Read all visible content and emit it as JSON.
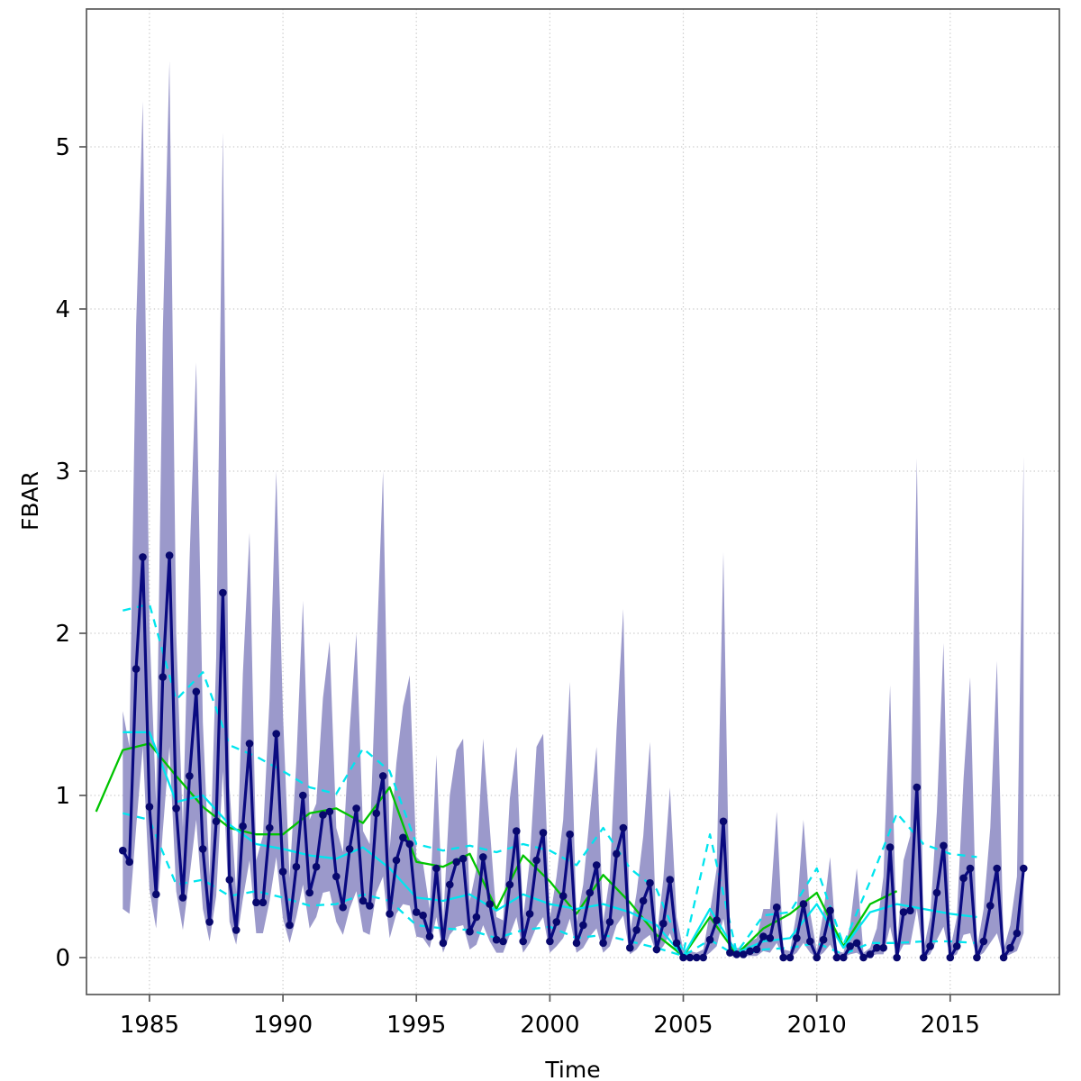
{
  "chart_data": {
    "type": "line",
    "title": "",
    "xlabel": "Time",
    "ylabel": "FBAR",
    "xlim": [
      1982.64,
      2019.09
    ],
    "ylim": [
      -0.228,
      5.85
    ],
    "x_ticks": [
      1985,
      1990,
      1995,
      2000,
      2005,
      2010,
      2015
    ],
    "y_ticks": [
      0,
      1,
      2,
      3,
      4,
      5
    ],
    "grid": "dotted",
    "legend_position": "none",
    "colors": {
      "band": "#9b99cb",
      "estimate": "#0a0a80",
      "estimate_point": "#08086e",
      "green_line": "#00c400",
      "cyan_line": "#00e5ee",
      "grid": "#c9c9c9",
      "axis": "#5a5a5a",
      "label": "#000000",
      "background": "#ffffff"
    },
    "band": {
      "name": "confidence-band",
      "start": 1984.0,
      "step": 0.25,
      "upper": [
        1.52,
        1.3,
        3.9,
        5.28,
        2.05,
        0.95,
        3.85,
        5.53,
        2.0,
        0.8,
        2.45,
        3.67,
        1.45,
        0.5,
        1.85,
        5.09,
        1.05,
        0.4,
        1.75,
        2.62,
        0.6,
        0.75,
        1.6,
        3.0,
        1.5,
        0.49,
        1.2,
        2.2,
        0.85,
        0.95,
        1.6,
        1.95,
        0.8,
        0.65,
        1.4,
        2.0,
        0.78,
        0.7,
        1.85,
        3.0,
        0.67,
        1.2,
        1.55,
        1.74,
        0.62,
        0.58,
        0.3,
        1.25,
        0.22,
        1.0,
        1.28,
        1.35,
        0.35,
        0.55,
        1.35,
        0.8,
        0.25,
        0.23,
        0.98,
        1.3,
        0.24,
        0.6,
        1.3,
        1.38,
        0.24,
        0.5,
        0.85,
        1.7,
        0.22,
        0.45,
        0.88,
        1.3,
        0.22,
        0.5,
        1.4,
        2.15,
        0.15,
        0.4,
        0.75,
        1.33,
        0.12,
        0.48,
        1.05,
        0.25,
        0.05,
        0.04,
        0.03,
        0.05,
        0.28,
        0.55,
        2.5,
        0.1,
        0.06,
        0.06,
        0.1,
        0.12,
        0.3,
        0.3,
        0.9,
        0.05,
        0.04,
        0.28,
        0.85,
        0.28,
        0.04,
        0.28,
        0.62,
        0.04,
        0.03,
        0.2,
        0.55,
        0.03,
        0.06,
        0.18,
        0.5,
        1.68,
        0.05,
        0.6,
        0.75,
        3.08,
        0.05,
        0.25,
        0.9,
        1.94,
        0.05,
        0.25,
        1.1,
        1.73,
        0.05,
        0.3,
        0.8,
        1.83,
        0.05,
        0.2,
        0.5,
        3.09
      ],
      "lower": [
        0.3,
        0.27,
        0.8,
        1.3,
        0.42,
        0.18,
        0.78,
        1.3,
        0.41,
        0.17,
        0.5,
        0.85,
        0.3,
        0.1,
        0.38,
        1.15,
        0.22,
        0.08,
        0.36,
        0.6,
        0.15,
        0.15,
        0.35,
        0.62,
        0.24,
        0.09,
        0.25,
        0.45,
        0.18,
        0.25,
        0.4,
        0.41,
        0.22,
        0.14,
        0.3,
        0.41,
        0.16,
        0.14,
        0.4,
        0.5,
        0.12,
        0.27,
        0.33,
        0.32,
        0.13,
        0.12,
        0.06,
        0.25,
        0.03,
        0.14,
        0.19,
        0.2,
        0.05,
        0.08,
        0.2,
        0.1,
        0.03,
        0.03,
        0.14,
        0.25,
        0.03,
        0.09,
        0.19,
        0.25,
        0.03,
        0.07,
        0.12,
        0.24,
        0.03,
        0.06,
        0.13,
        0.18,
        0.03,
        0.07,
        0.2,
        0.26,
        0.02,
        0.05,
        0.11,
        0.14,
        0.02,
        0.07,
        0.15,
        0.03,
        0.0,
        0.0,
        0.0,
        0.0,
        0.03,
        0.07,
        0.24,
        0.01,
        0.01,
        0.01,
        0.01,
        0.01,
        0.04,
        0.03,
        0.09,
        0.0,
        0.0,
        0.03,
        0.09,
        0.03,
        0.0,
        0.03,
        0.08,
        0.0,
        0.0,
        0.02,
        0.03,
        0.0,
        0.01,
        0.02,
        0.02,
        0.19,
        0.0,
        0.08,
        0.08,
        0.3,
        0.0,
        0.02,
        0.11,
        0.19,
        0.0,
        0.02,
        0.14,
        0.15,
        0.0,
        0.03,
        0.09,
        0.15,
        0.0,
        0.02,
        0.04,
        0.15
      ]
    },
    "estimate": {
      "name": "fbar-estimate",
      "start": 1984.0,
      "step": 0.25,
      "values": [
        0.66,
        0.59,
        1.78,
        2.47,
        0.93,
        0.39,
        1.73,
        2.48,
        0.92,
        0.37,
        1.12,
        1.64,
        0.67,
        0.22,
        0.84,
        2.25,
        0.48,
        0.17,
        0.81,
        1.32,
        0.34,
        0.34,
        0.8,
        1.38,
        0.53,
        0.2,
        0.56,
        1.0,
        0.4,
        0.56,
        0.88,
        0.9,
        0.5,
        0.31,
        0.67,
        0.92,
        0.35,
        0.32,
        0.89,
        1.12,
        0.27,
        0.6,
        0.74,
        0.7,
        0.28,
        0.26,
        0.13,
        0.55,
        0.09,
        0.45,
        0.59,
        0.61,
        0.16,
        0.25,
        0.62,
        0.33,
        0.11,
        0.1,
        0.45,
        0.78,
        0.1,
        0.27,
        0.6,
        0.77,
        0.1,
        0.22,
        0.38,
        0.76,
        0.09,
        0.2,
        0.4,
        0.57,
        0.09,
        0.22,
        0.64,
        0.8,
        0.06,
        0.17,
        0.35,
        0.46,
        0.05,
        0.21,
        0.48,
        0.09,
        0.0,
        0.0,
        0.0,
        0.0,
        0.11,
        0.23,
        0.84,
        0.03,
        0.02,
        0.02,
        0.04,
        0.05,
        0.13,
        0.12,
        0.31,
        0.0,
        0.0,
        0.12,
        0.33,
        0.1,
        0.0,
        0.11,
        0.29,
        0.0,
        0.0,
        0.07,
        0.09,
        0.0,
        0.02,
        0.06,
        0.06,
        0.68,
        0.0,
        0.28,
        0.29,
        1.05,
        0.0,
        0.07,
        0.4,
        0.69,
        0.0,
        0.07,
        0.49,
        0.55,
        0.0,
        0.1,
        0.32,
        0.55,
        0.0,
        0.06,
        0.15,
        0.55
      ]
    },
    "reference_lines": [
      {
        "name": "green-annual-line",
        "color": "#00c400",
        "dash": null,
        "start": 1983,
        "step": 1,
        "values": [
          0.9,
          1.28,
          1.32,
          1.12,
          0.93,
          0.8,
          0.76,
          0.76,
          0.89,
          0.92,
          0.83,
          1.05,
          0.59,
          0.56,
          0.64,
          0.3,
          0.63,
          0.47,
          0.27,
          0.51,
          0.34,
          0.14,
          0.01,
          0.25,
          0.02,
          0.18,
          0.27,
          0.4,
          0.07,
          0.33,
          0.41
        ]
      },
      {
        "name": "cyan-annual-line",
        "color": "#00e5ee",
        "dash": null,
        "start": 1984,
        "step": 1,
        "values": [
          1.39,
          1.39,
          0.96,
          1.0,
          0.82,
          0.7,
          0.67,
          0.63,
          0.61,
          0.68,
          0.55,
          0.37,
          0.35,
          0.39,
          0.29,
          0.39,
          0.33,
          0.3,
          0.33,
          0.28,
          0.2,
          0.01,
          0.3,
          0.03,
          0.1,
          0.12,
          0.33,
          0.06,
          0.28,
          0.33,
          0.3,
          0.27,
          0.25
        ]
      },
      {
        "name": "cyan-dashed-upper-line",
        "color": "#00e5ee",
        "dash": "9 7",
        "start": 1984,
        "step": 1,
        "values": [
          2.14,
          2.18,
          1.59,
          1.76,
          1.31,
          1.24,
          1.15,
          1.05,
          1.01,
          1.29,
          1.15,
          0.7,
          0.66,
          0.69,
          0.65,
          0.7,
          0.66,
          0.57,
          0.8,
          0.55,
          0.42,
          0.03,
          0.76,
          0.03,
          0.26,
          0.28,
          0.55,
          0.08,
          0.47,
          0.89,
          0.7,
          0.64,
          0.62
        ]
      },
      {
        "name": "cyan-dashed-lower-line",
        "color": "#00e5ee",
        "dash": "9 7",
        "start": 1984,
        "step": 1,
        "values": [
          0.89,
          0.85,
          0.45,
          0.48,
          0.38,
          0.41,
          0.37,
          0.32,
          0.33,
          0.39,
          0.35,
          0.2,
          0.18,
          0.17,
          0.12,
          0.17,
          0.19,
          0.12,
          0.14,
          0.1,
          0.06,
          0.01,
          0.11,
          0.01,
          0.05,
          0.06,
          0.09,
          0.02,
          0.09,
          0.09,
          0.1,
          0.1,
          0.09
        ]
      }
    ]
  }
}
